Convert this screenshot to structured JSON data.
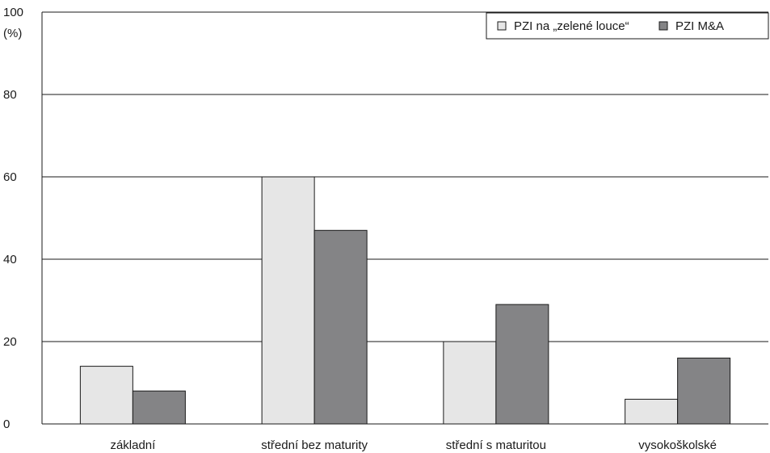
{
  "chart_data": {
    "type": "bar",
    "categories": [
      "základní",
      "střední bez maturity",
      "střední s maturitou",
      "vysokoškolské"
    ],
    "series": [
      {
        "name": "PZI na „zelené louce“",
        "values": [
          14,
          60,
          20,
          6
        ],
        "color": "#e6e6e6"
      },
      {
        "name": "PZI M&A",
        "values": [
          8,
          47,
          29,
          16
        ],
        "color": "#848486"
      }
    ],
    "ylabel": "(%)",
    "ylim": [
      0,
      100
    ],
    "yticks": [
      0,
      20,
      40,
      60,
      80,
      100
    ],
    "grid": true,
    "legend_position": "top-right"
  }
}
